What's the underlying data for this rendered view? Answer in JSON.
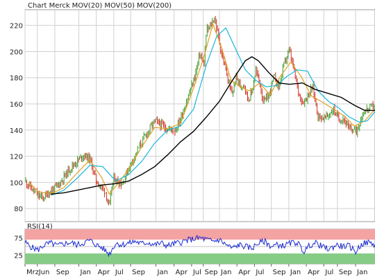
{
  "legend": [
    {
      "text": "Chart Merck",
      "color": "#e07a2a"
    },
    {
      "text": "MOV(20)",
      "color": "#e0a020"
    },
    {
      "text": "MOV(50)",
      "color": "#18b4d8"
    },
    {
      "text": "MOV(200)",
      "color": "#000000"
    }
  ],
  "chart_data": [
    {
      "type": "line",
      "title": "Chart Merck",
      "series": [
        {
          "name": "Chart Merck",
          "color": "#c83a1a",
          "kind": "price",
          "x": [
            0,
            6,
            12,
            20,
            28,
            38,
            50,
            60,
            70,
            80,
            90,
            100,
            110,
            118,
            124,
            130,
            134,
            138,
            142,
            150,
            160,
            170,
            180,
            190,
            200,
            210,
            220,
            232,
            240,
            252,
            262,
            270,
            276,
            280,
            286,
            292,
            298,
            304,
            310,
            316,
            320,
            326,
            332,
            338,
            344,
            350,
            356,
            362,
            368,
            376,
            384,
            392,
            400,
            408,
            416,
            422,
            428,
            436,
            444,
            452,
            460,
            468,
            476,
            484,
            492,
            500,
            506,
            512,
            518,
            524,
            530,
            536,
            540
          ],
          "y": [
            101,
            98,
            94,
            90,
            88,
            93,
            97,
            104,
            111,
            116,
            121,
            118,
            101,
            96,
            93,
            80,
            97,
            104,
            101,
            99,
            111,
            121,
            131,
            139,
            147,
            144,
            141,
            140,
            149,
            166,
            181,
            199,
            189,
            216,
            219,
            226,
            213,
            196,
            186,
            171,
            168,
            181,
            173,
            176,
            163,
            169,
            186,
            176,
            161,
            166,
            181,
            173,
            191,
            201,
            183,
            169,
            161,
            166,
            173,
            151,
            149,
            151,
            156,
            148,
            149,
            140,
            141,
            139,
            149,
            155,
            156,
            158,
            160
          ]
        },
        {
          "name": "MOV(20)",
          "color": "#e0a020",
          "kind": "ma",
          "x": [
            6,
            20,
            40,
            60,
            80,
            100,
            118,
            130,
            142,
            160,
            180,
            200,
            220,
            240,
            260,
            276,
            290,
            304,
            318,
            332,
            346,
            362,
            378,
            394,
            410,
            426,
            442,
            460,
            476,
            492,
            508,
            524,
            540
          ],
          "y": [
            100,
            93,
            91,
            96,
            107,
            117,
            104,
            91,
            98,
            110,
            127,
            142,
            141,
            145,
            172,
            196,
            221,
            202,
            178,
            173,
            170,
            176,
            167,
            181,
            192,
            181,
            166,
            161,
            156,
            151,
            143,
            147,
            156
          ]
        },
        {
          "name": "MOV(50)",
          "color": "#18b4d8",
          "kind": "ma",
          "x": [
            40,
            60,
            80,
            100,
            120,
            140,
            160,
            180,
            200,
            220,
            240,
            260,
            280,
            296,
            310,
            324,
            340,
            356,
            372,
            388,
            404,
            420,
            436,
            452,
            468,
            484,
            500,
            516,
            528,
            540
          ],
          "y": [
            90,
            94,
            103,
            113,
            112,
            101,
            106,
            116,
            130,
            140,
            143,
            156,
            190,
            212,
            218,
            203,
            186,
            178,
            173,
            174,
            181,
            186,
            185,
            170,
            162,
            157,
            150,
            146,
            147,
            154
          ]
        },
        {
          "name": "MOV(200)",
          "color": "#000000",
          "kind": "ma",
          "x": [
            40,
            60,
            80,
            100,
            120,
            140,
            160,
            180,
            200,
            220,
            240,
            260,
            280,
            300,
            320,
            340,
            350,
            360,
            376,
            392,
            408,
            428,
            448,
            468,
            488,
            508,
            524,
            540
          ],
          "y": [
            91,
            92,
            94,
            96,
            98,
            99,
            101,
            106,
            112,
            121,
            131,
            139,
            150,
            162,
            178,
            193,
            196,
            193,
            184,
            176,
            175,
            176,
            171,
            168,
            165,
            159,
            155,
            155
          ]
        }
      ],
      "ylim": [
        70,
        232
      ],
      "yticks": [
        80,
        100,
        120,
        140,
        160,
        180,
        200,
        220
      ],
      "grid": true
    },
    {
      "type": "line",
      "title": "RSI(14)",
      "series": [
        {
          "name": "RSI(14)",
          "color": "#1a2ad0",
          "kind": "rsi",
          "x": [
            0,
            10,
            20,
            30,
            40,
            50,
            60,
            70,
            80,
            90,
            100,
            110,
            120,
            130,
            140,
            150,
            160,
            170,
            180,
            190,
            200,
            210,
            220,
            230,
            240,
            250,
            260,
            270,
            280,
            290,
            300,
            310,
            320,
            330,
            340,
            350,
            360,
            370,
            380,
            390,
            400,
            410,
            420,
            430,
            440,
            450,
            460,
            470,
            480,
            490,
            500,
            510,
            520,
            530,
            540
          ],
          "y": [
            62,
            48,
            40,
            55,
            60,
            52,
            58,
            62,
            55,
            60,
            68,
            55,
            45,
            28,
            60,
            55,
            60,
            65,
            58,
            62,
            55,
            60,
            52,
            58,
            62,
            68,
            72,
            75,
            70,
            65,
            70,
            55,
            45,
            55,
            50,
            45,
            60,
            65,
            50,
            55,
            52,
            60,
            62,
            35,
            55,
            60,
            48,
            42,
            55,
            50,
            52,
            35,
            58,
            62,
            55
          ]
        }
      ],
      "ylim": [
        0,
        100
      ],
      "yticks": [
        25,
        75
      ],
      "bands": [
        {
          "from": 70,
          "to": 100,
          "color": "#f4a3a3"
        },
        {
          "from": 0,
          "to": 30,
          "color": "#86cc86"
        }
      ]
    }
  ],
  "x_axis": {
    "ticks": [
      {
        "label": "Mrz",
        "pos": 0
      },
      {
        "label": "Jun",
        "pos": 19
      },
      {
        "label": "Sep",
        "pos": 46
      },
      {
        "label": "Jan",
        "pos": 83
      },
      {
        "label": "Apr",
        "pos": 110
      },
      {
        "label": "Jul",
        "pos": 137
      },
      {
        "label": "Sep",
        "pos": 163
      },
      {
        "label": "Jan",
        "pos": 202
      },
      {
        "label": "Apr",
        "pos": 230
      },
      {
        "label": "Jul",
        "pos": 257
      },
      {
        "label": "Sep",
        "pos": 275
      },
      {
        "label": "Jan",
        "pos": 300
      },
      {
        "label": "Apr",
        "pos": 327
      },
      {
        "label": "Jul",
        "pos": 354
      },
      {
        "label": "Sep",
        "pos": 380
      },
      {
        "label": "Jan",
        "pos": 407
      },
      {
        "label": "Apr",
        "pos": 434
      },
      {
        "label": "Jul",
        "pos": 461
      },
      {
        "label": "Sep",
        "pos": 482
      },
      {
        "label": "Jan",
        "pos": 510
      }
    ]
  }
}
